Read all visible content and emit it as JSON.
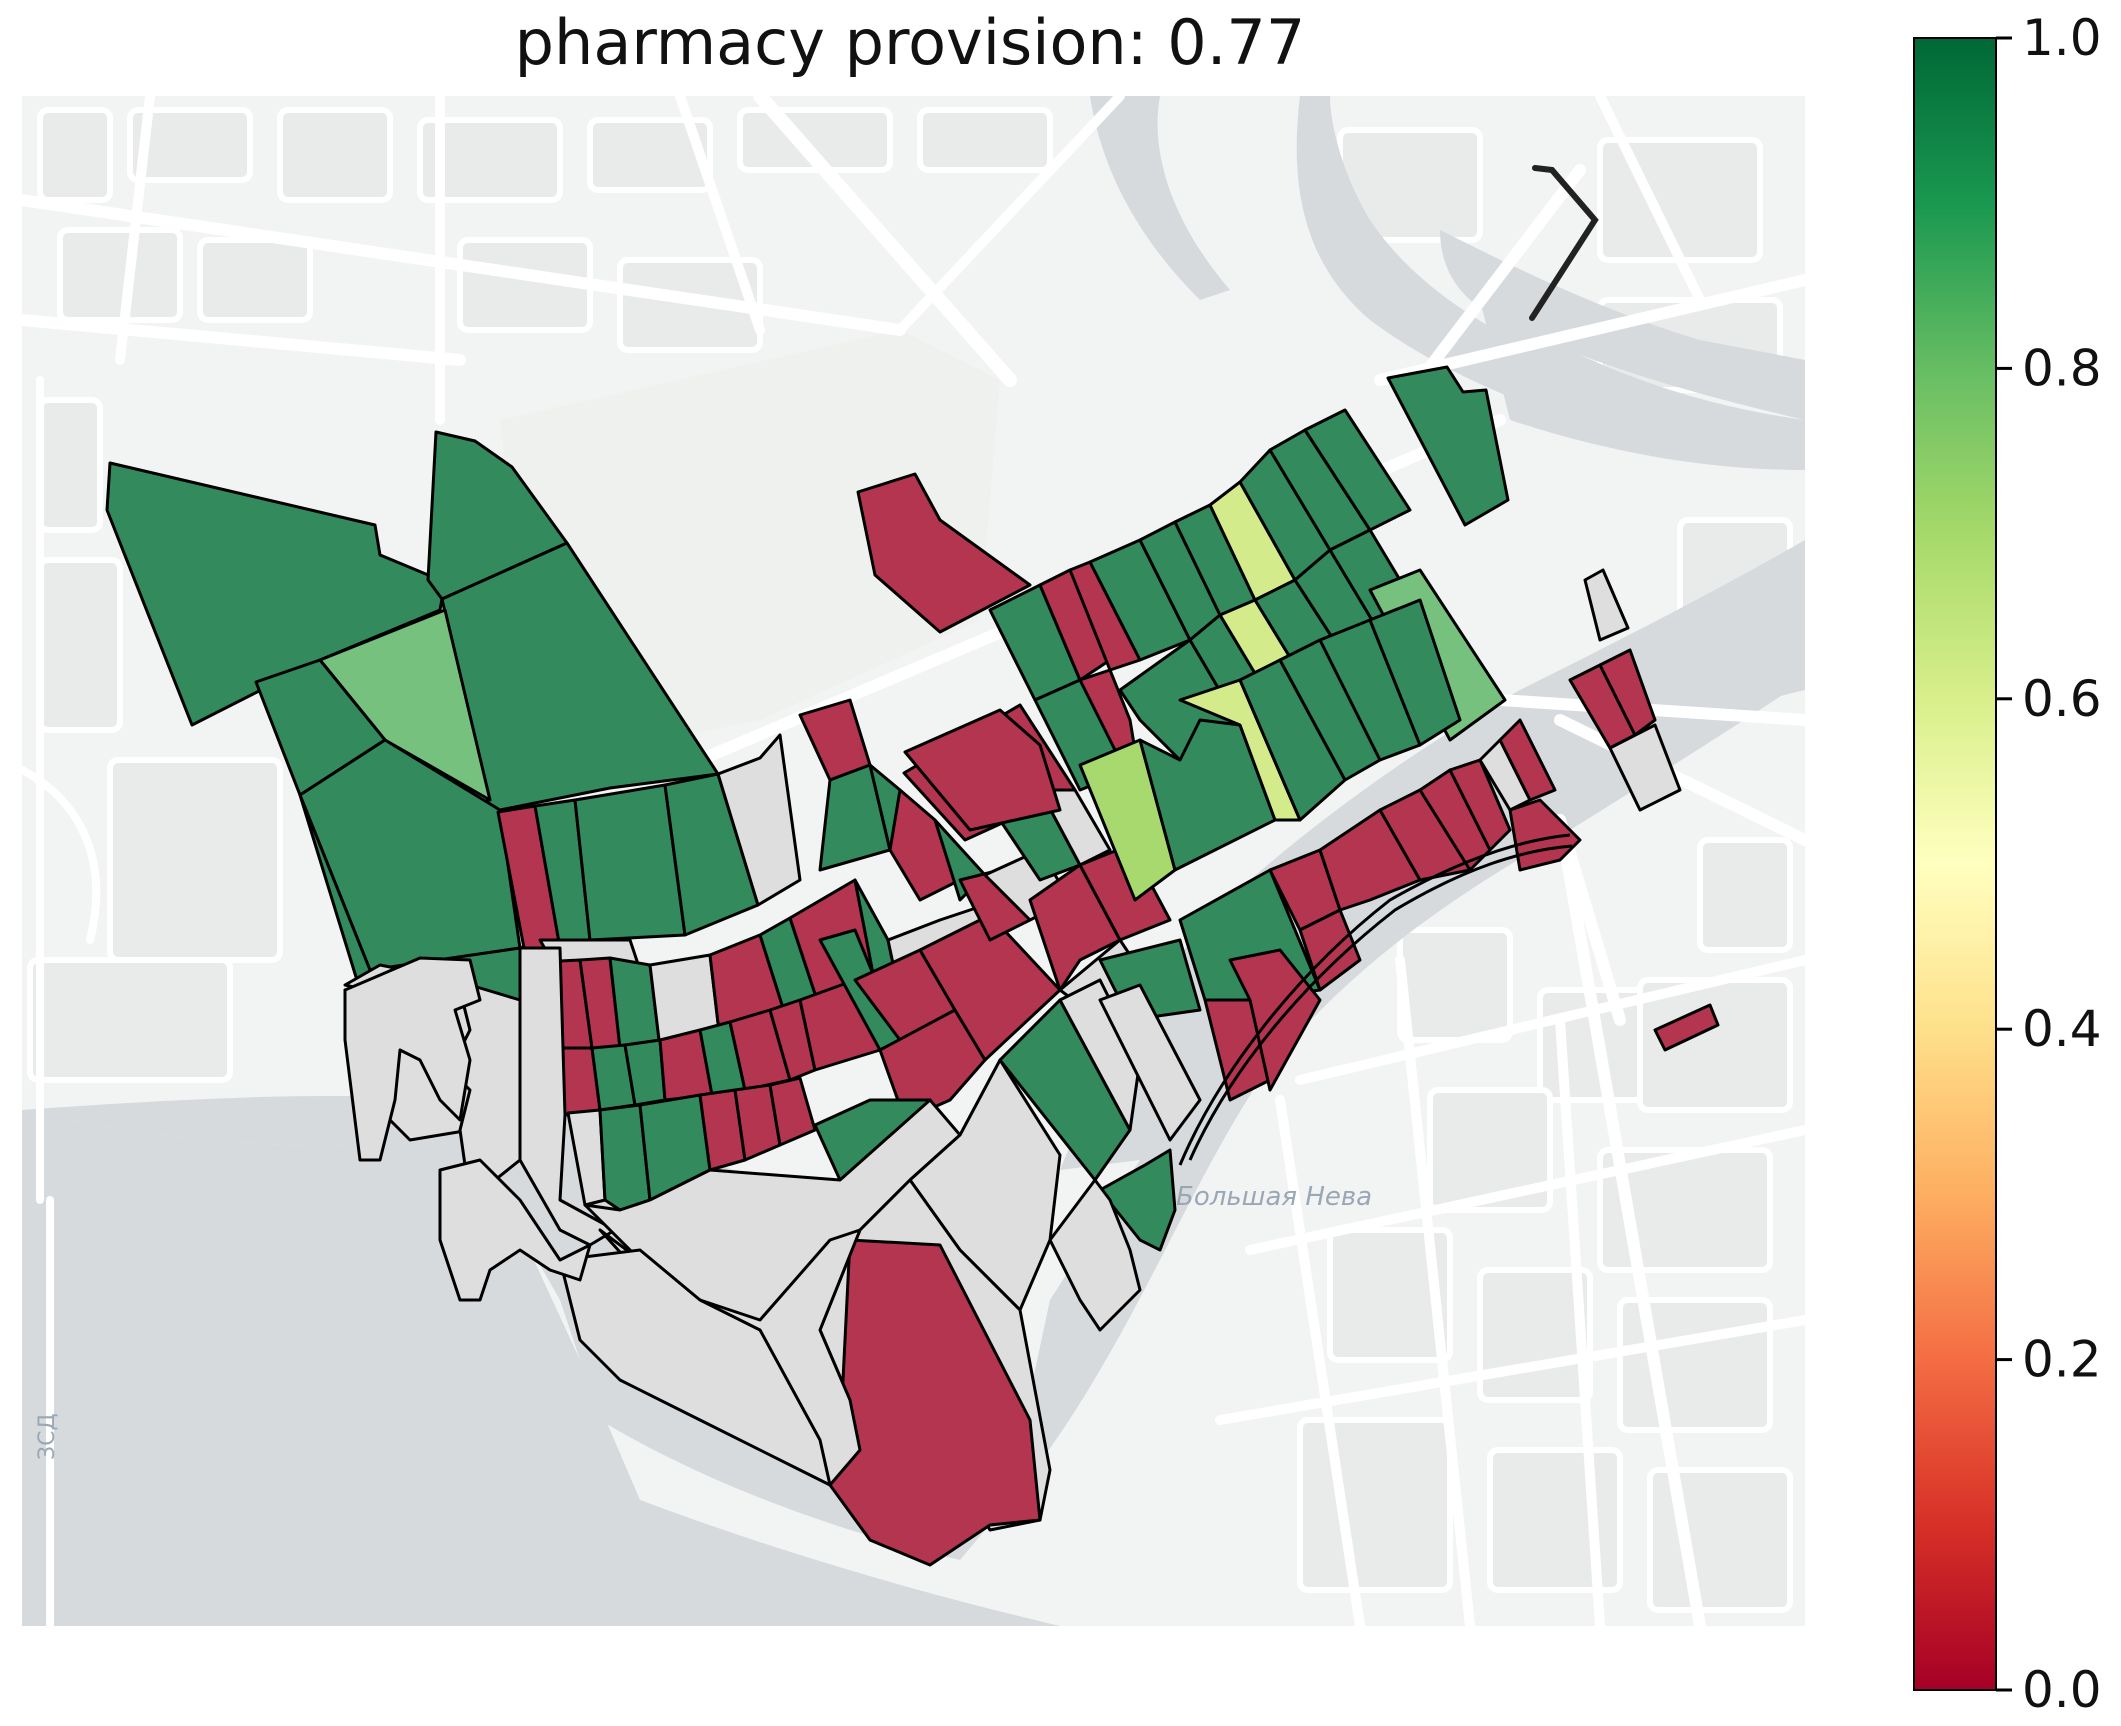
{
  "title": "pharmacy provision: 0.77",
  "basemap": {
    "river_label": "Большая Нева",
    "road_label": "ЗСД",
    "water_color": "#d6dadd",
    "land_color": "#f2f3f3",
    "park_color": "#eef1ee",
    "road_color": "#ffffff"
  },
  "colorbar": {
    "colormap": "RdYlGn",
    "min": 0.0,
    "max": 1.0,
    "ticks": [
      "0.0",
      "0.2",
      "0.4",
      "0.6",
      "0.8",
      "1.0"
    ],
    "stops": [
      "#a50026",
      "#d73027",
      "#f46d43",
      "#fdae61",
      "#fee08b",
      "#ffffbf",
      "#d9ef8b",
      "#a6d96a",
      "#66bd63",
      "#1a9850",
      "#006837"
    ]
  },
  "chart_data": {
    "type": "choropleth",
    "title": "pharmacy provision: 0.77",
    "value_range": [
      0,
      1
    ],
    "no_data_color": "#dedede",
    "legend": "colorbar-right",
    "class_values": {
      "high": 0.9,
      "upper": 0.75,
      "mid": 0.65,
      "low": 0.0
    },
    "block_counts": {
      "high": 46,
      "upper": 2,
      "mid": 3,
      "low": 39,
      "no_data": 30
    }
  }
}
